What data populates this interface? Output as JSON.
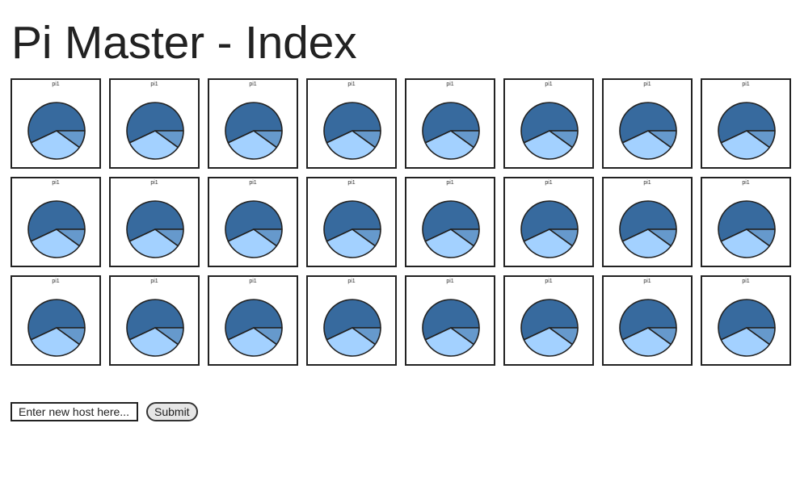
{
  "page": {
    "title": "Pi Master - Index"
  },
  "hosts_tile_label": "pi1",
  "tile_count": 24,
  "pie": {
    "slice_fractions": [
      0.57,
      0.33,
      0.1
    ],
    "start_angle_deg": 0,
    "colors": [
      "#376a9e",
      "#a3d1ff",
      "#6699cc"
    ],
    "stroke": "#222222"
  },
  "form": {
    "placeholder": "Enter new host here...",
    "submit_label": "Submit"
  }
}
